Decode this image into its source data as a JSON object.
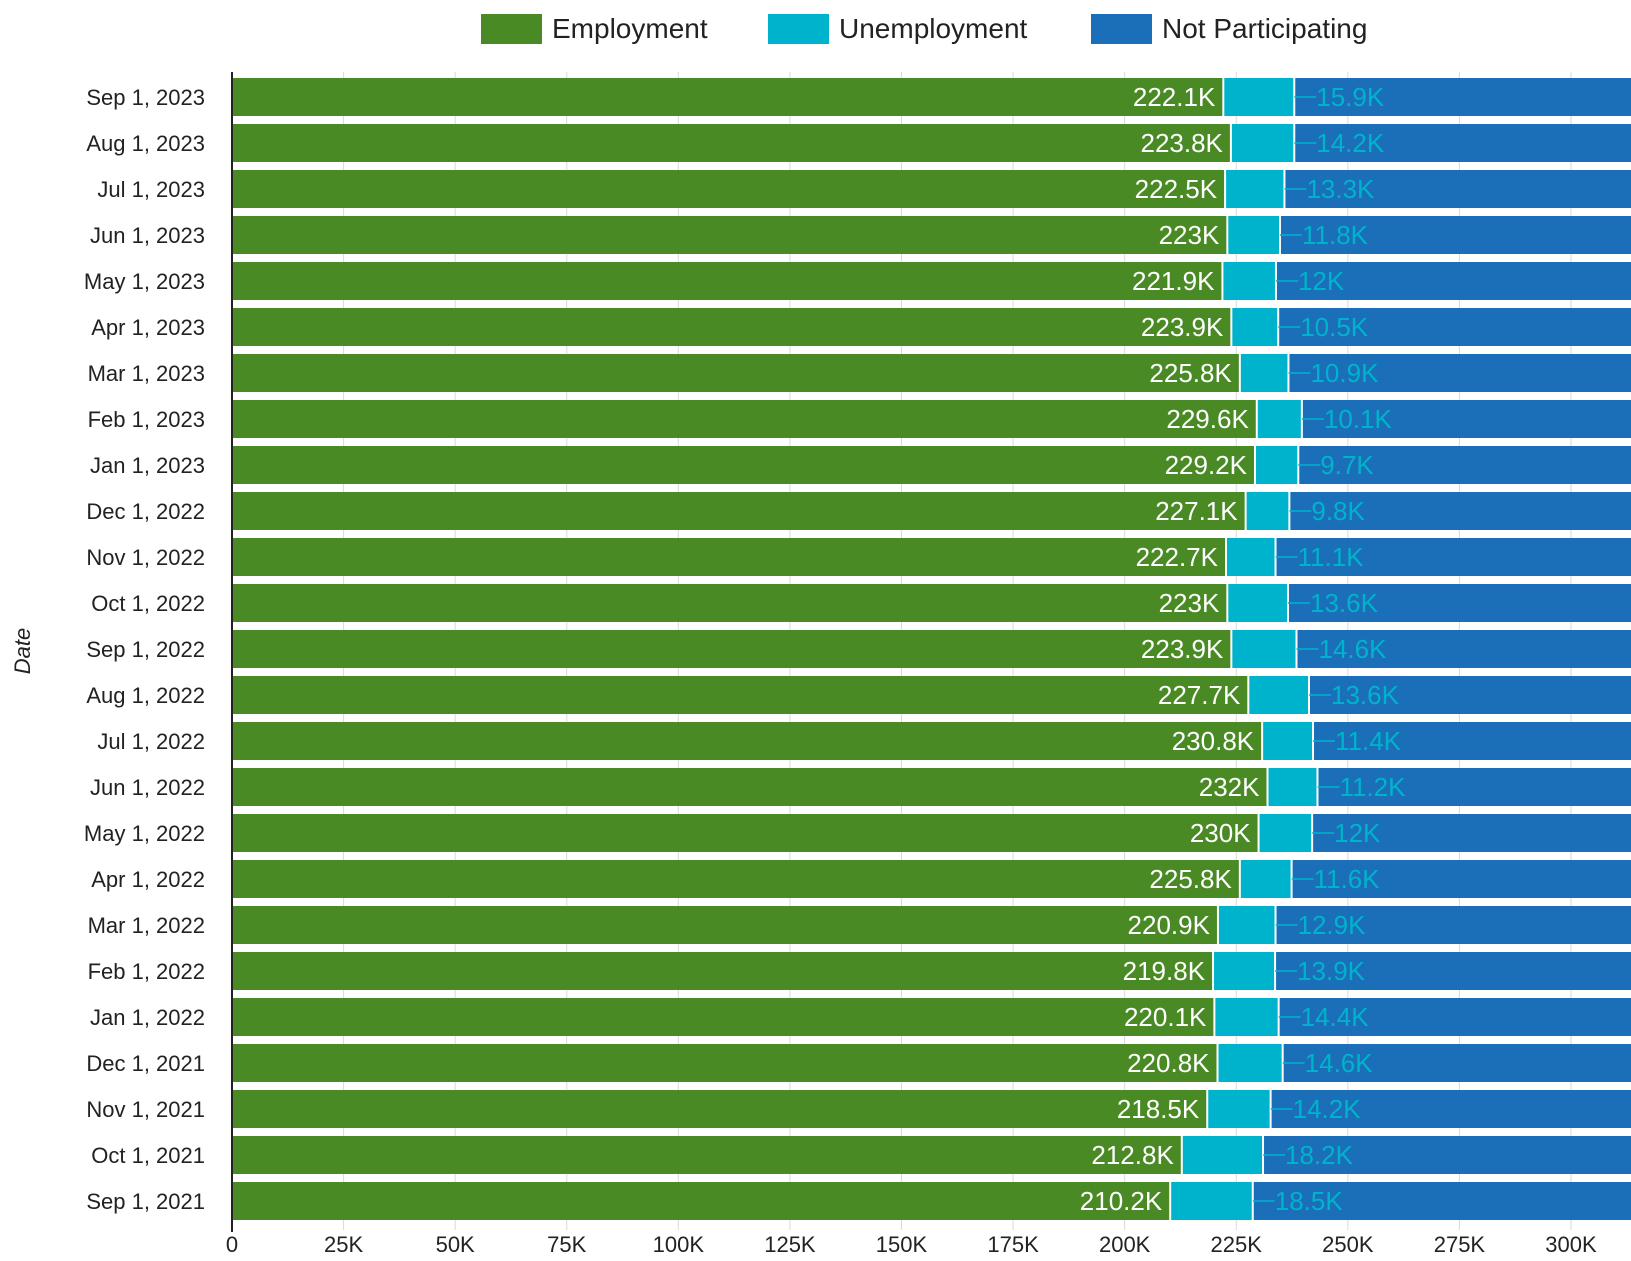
{
  "chart_data": {
    "type": "bar",
    "orientation": "horizontal",
    "stacked": true,
    "title": "",
    "xlabel": "",
    "ylabel": "Date",
    "xlim": [
      0,
      313000
    ],
    "x_ticks": [
      "0",
      "25K",
      "50K",
      "75K",
      "100K",
      "125K",
      "150K",
      "175K",
      "200K",
      "225K",
      "250K",
      "275K",
      "300K"
    ],
    "x_tick_values": [
      0,
      25000,
      50000,
      75000,
      100000,
      125000,
      150000,
      175000,
      200000,
      225000,
      250000,
      275000,
      300000
    ],
    "grid": "vertical",
    "legend_position": "top-center",
    "categories": [
      "Sep 1, 2023",
      "Aug 1, 2023",
      "Jul 1, 2023",
      "Jun 1, 2023",
      "May 1, 2023",
      "Apr 1, 2023",
      "Mar 1, 2023",
      "Feb 1, 2023",
      "Jan 1, 2023",
      "Dec 1, 2022",
      "Nov 1, 2022",
      "Oct 1, 2022",
      "Sep 1, 2022",
      "Aug 1, 2022",
      "Jul 1, 2022",
      "Jun 1, 2022",
      "May 1, 2022",
      "Apr 1, 2022",
      "Mar 1, 2022",
      "Feb 1, 2022",
      "Jan 1, 2022",
      "Dec 1, 2021",
      "Nov 1, 2021",
      "Oct 1, 2021",
      "Sep 1, 2021"
    ],
    "series": [
      {
        "name": "Employment",
        "color": "#4a8a25",
        "values": [
          222100,
          223800,
          222500,
          223000,
          221900,
          223900,
          225800,
          229600,
          229200,
          227100,
          222700,
          223000,
          223900,
          227700,
          230800,
          232000,
          230000,
          225800,
          220900,
          219800,
          220100,
          220800,
          218500,
          212800,
          210200
        ],
        "labels": [
          "222.1K",
          "223.8K",
          "222.5K",
          "223K",
          "221.9K",
          "223.9K",
          "225.8K",
          "229.6K",
          "229.2K",
          "227.1K",
          "222.7K",
          "223K",
          "223.9K",
          "227.7K",
          "230.8K",
          "232K",
          "230K",
          "225.8K",
          "220.9K",
          "219.8K",
          "220.1K",
          "220.8K",
          "218.5K",
          "212.8K",
          "210.2K"
        ]
      },
      {
        "name": "Unemployment",
        "color": "#00b3cc",
        "values": [
          15900,
          14200,
          13300,
          11800,
          12000,
          10500,
          10900,
          10100,
          9700,
          9800,
          11100,
          13600,
          14600,
          13600,
          11400,
          11200,
          12000,
          11600,
          12900,
          13900,
          14400,
          14600,
          14200,
          18200,
          18500
        ],
        "labels": [
          "15.9K",
          "14.2K",
          "13.3K",
          "11.8K",
          "12K",
          "10.5K",
          "10.9K",
          "10.1K",
          "9.7K",
          "9.8K",
          "11.1K",
          "13.6K",
          "14.6K",
          "13.6K",
          "11.4K",
          "11.2K",
          "12K",
          "11.6K",
          "12.9K",
          "13.9K",
          "14.4K",
          "14.6K",
          "14.2K",
          "18.2K",
          "18.5K"
        ]
      },
      {
        "name": "Not Participating",
        "color": "#1a6fb8"
      }
    ]
  }
}
